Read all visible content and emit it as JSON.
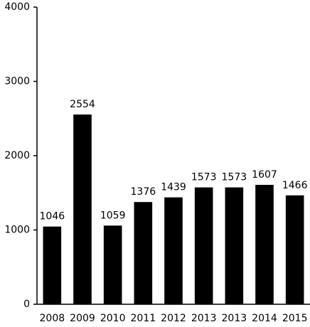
{
  "chart_data": {
    "type": "bar",
    "categories": [
      "2008",
      "2009",
      "2010",
      "2011",
      "2012",
      "2013",
      "2013",
      "2014",
      "2015"
    ],
    "values": [
      1046,
      2554,
      1059,
      1376,
      1439,
      1573,
      1573,
      1607,
      1466
    ],
    "color": "#000000",
    "ylim": [
      0,
      4000
    ],
    "yticks": [
      0,
      1000,
      2000,
      3000,
      4000
    ],
    "grid": false
  }
}
